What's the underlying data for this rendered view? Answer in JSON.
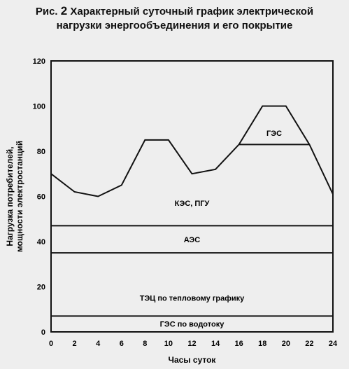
{
  "header": {
    "fig_label": "Рис.",
    "fig_number": "2",
    "title_line1": "Характерный суточный график электрической",
    "title_line2": "нагрузки энергообъединения и его покрытие"
  },
  "chart_data": {
    "type": "line",
    "xlabel": "Часы суток",
    "ylabel_line1": "Нагрузка потребителей,",
    "ylabel_line2": "мощности электростанций",
    "xlim": [
      0,
      24
    ],
    "ylim": [
      0,
      120
    ],
    "x_ticks": [
      0,
      2,
      4,
      6,
      8,
      10,
      12,
      14,
      16,
      18,
      20,
      22,
      24
    ],
    "y_ticks": [
      0,
      20,
      40,
      60,
      80,
      100,
      120
    ],
    "grid": false,
    "series": [
      {
        "x": [
          0,
          2,
          4,
          6,
          8,
          10,
          12,
          14,
          16,
          18,
          20,
          22,
          24
        ],
        "values": [
          70,
          62,
          60,
          65,
          85,
          85,
          70,
          72,
          83,
          100,
          100,
          83,
          61
        ]
      }
    ],
    "band_boundaries": [
      7,
      35,
      47
    ],
    "ges_base": 83,
    "ges_span": [
      16,
      22
    ],
    "zones": [
      {
        "label": "ГЭС по водотоку",
        "x": 12,
        "y": 3.5
      },
      {
        "label": "ТЭЦ по тепловому графику",
        "x": 12,
        "y": 15
      },
      {
        "label": "АЭС",
        "x": 12,
        "y": 41
      },
      {
        "label": "КЭС, ПГУ",
        "x": 12,
        "y": 57
      },
      {
        "label": "ГЭС",
        "x": 19,
        "y": 88
      }
    ]
  }
}
